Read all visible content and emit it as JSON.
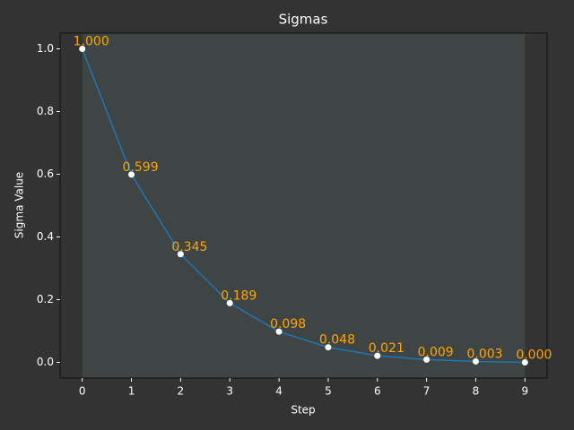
{
  "chart_data": {
    "type": "line",
    "title": "Sigmas",
    "xlabel": "Step",
    "ylabel": "Sigma Value",
    "x": [
      0,
      1,
      2,
      3,
      4,
      5,
      6,
      7,
      8,
      9
    ],
    "values": [
      1.0,
      0.599,
      0.345,
      0.189,
      0.098,
      0.048,
      0.021,
      0.009,
      0.003,
      0.0
    ],
    "value_labels": [
      "1.000",
      "0.599",
      "0.345",
      "0.189",
      "0.098",
      "0.048",
      "0.021",
      "0.009",
      "0.003",
      "0.000"
    ],
    "color": "#1f77b4",
    "marker_color": "#ffffff",
    "label_color": "#ffa500",
    "xlim": [
      -0.45,
      9.45
    ],
    "xticks": [
      0,
      1,
      2,
      3,
      4,
      5,
      6,
      7,
      8,
      9
    ],
    "ylim": [
      -0.05,
      1.05
    ],
    "yticks": [
      {
        "value": 0,
        "label": "0.0"
      },
      0.2,
      0.4,
      0.6,
      0.8,
      {
        "value": 1,
        "label": "1.0"
      }
    ],
    "grid": false
  }
}
